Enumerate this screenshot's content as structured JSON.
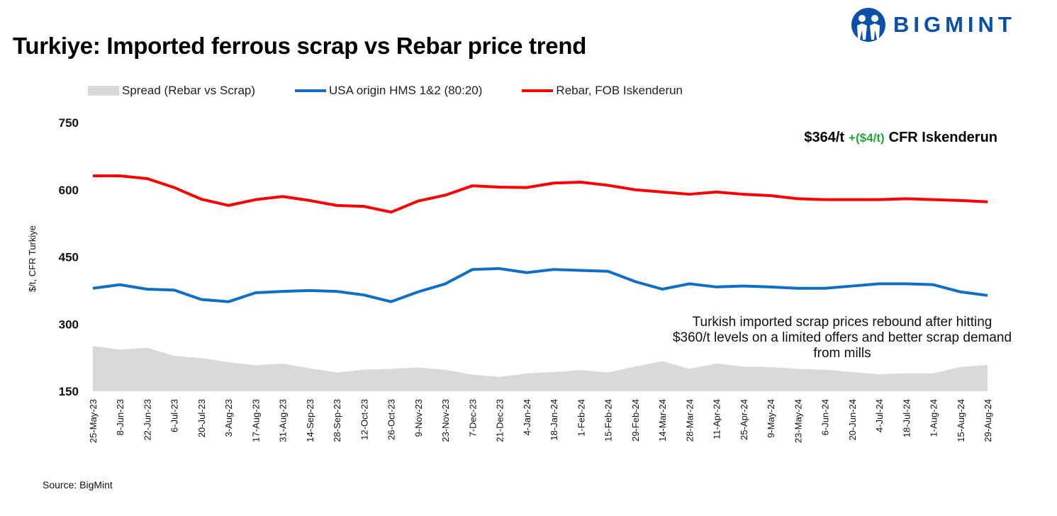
{
  "logo": {
    "text": "BIGMINT",
    "color": "#0a4fa8"
  },
  "chart_data": {
    "type": "line",
    "title": "Turkiye: Imported ferrous scrap vs Rebar price trend",
    "ylabel": "$/t, CFR Turkiye",
    "xlabel": "",
    "ylim": [
      150,
      750
    ],
    "yticks": [
      150,
      300,
      450,
      600,
      750
    ],
    "grid": false,
    "legend_placement": "top",
    "categories": [
      "25-May-23",
      "8-Jun-23",
      "22-Jun-23",
      "6-Jul-23",
      "20-Jul-23",
      "3-Aug-23",
      "17-Aug-23",
      "31-Aug-23",
      "14-Sep-23",
      "28-Sep-23",
      "12-Oct-23",
      "26-Oct-23",
      "9-Nov-23",
      "23-Nov-23",
      "7-Dec-23",
      "21-Dec-23",
      "4-Jan-24",
      "18-Jan-24",
      "1-Feb-24",
      "15-Feb-24",
      "29-Feb-24",
      "14-Mar-24",
      "28-Mar-24",
      "11-Apr-24",
      "25-Apr-24",
      "9-May-24",
      "23-May-24",
      "6-Jun-24",
      "20-Jun-24",
      "4-Jul-24",
      "18-Jul-24",
      "1-Aug-24",
      "15-Aug-24",
      "29-Aug-24"
    ],
    "series": [
      {
        "name": "Spread (Rebar vs Scrap)",
        "kind": "area",
        "color": "#d9d9d9",
        "values": [
          251,
          243,
          247,
          229,
          224,
          215,
          208,
          212,
          201,
          192,
          198,
          200,
          203,
          198,
          187,
          182,
          190,
          193,
          197,
          192,
          205,
          217,
          200,
          212,
          205,
          204,
          200,
          198,
          193,
          188,
          190,
          190,
          204,
          209
        ]
      },
      {
        "name": "USA origin HMS 1&2 (80:20)",
        "kind": "line",
        "color": "#0f6fc6",
        "values": [
          380,
          388,
          378,
          376,
          355,
          350,
          370,
          373,
          375,
          373,
          365,
          350,
          372,
          390,
          422,
          424,
          415,
          422,
          420,
          418,
          395,
          378,
          390,
          383,
          385,
          383,
          380,
          380,
          385,
          390,
          390,
          388,
          372,
          364
        ]
      },
      {
        "name": "Rebar, FOB Iskenderun",
        "kind": "line",
        "color": "#ff0000",
        "values": [
          631,
          631,
          625,
          605,
          579,
          565,
          578,
          585,
          576,
          565,
          563,
          550,
          575,
          588,
          609,
          606,
          605,
          615,
          617,
          610,
          600,
          595,
          590,
          595,
          590,
          587,
          580,
          578,
          578,
          578,
          580,
          578,
          576,
          573
        ]
      }
    ],
    "annotations": {
      "latest_price": "$364/t",
      "change": "+($4/t)",
      "change_color": "#22a63a",
      "price_basis": "CFR Iskenderun",
      "note": "Turkish imported scrap prices rebound after hitting $360/t levels on a limited offers and better scrap demand from mills"
    },
    "source": "Source: BigMint"
  }
}
